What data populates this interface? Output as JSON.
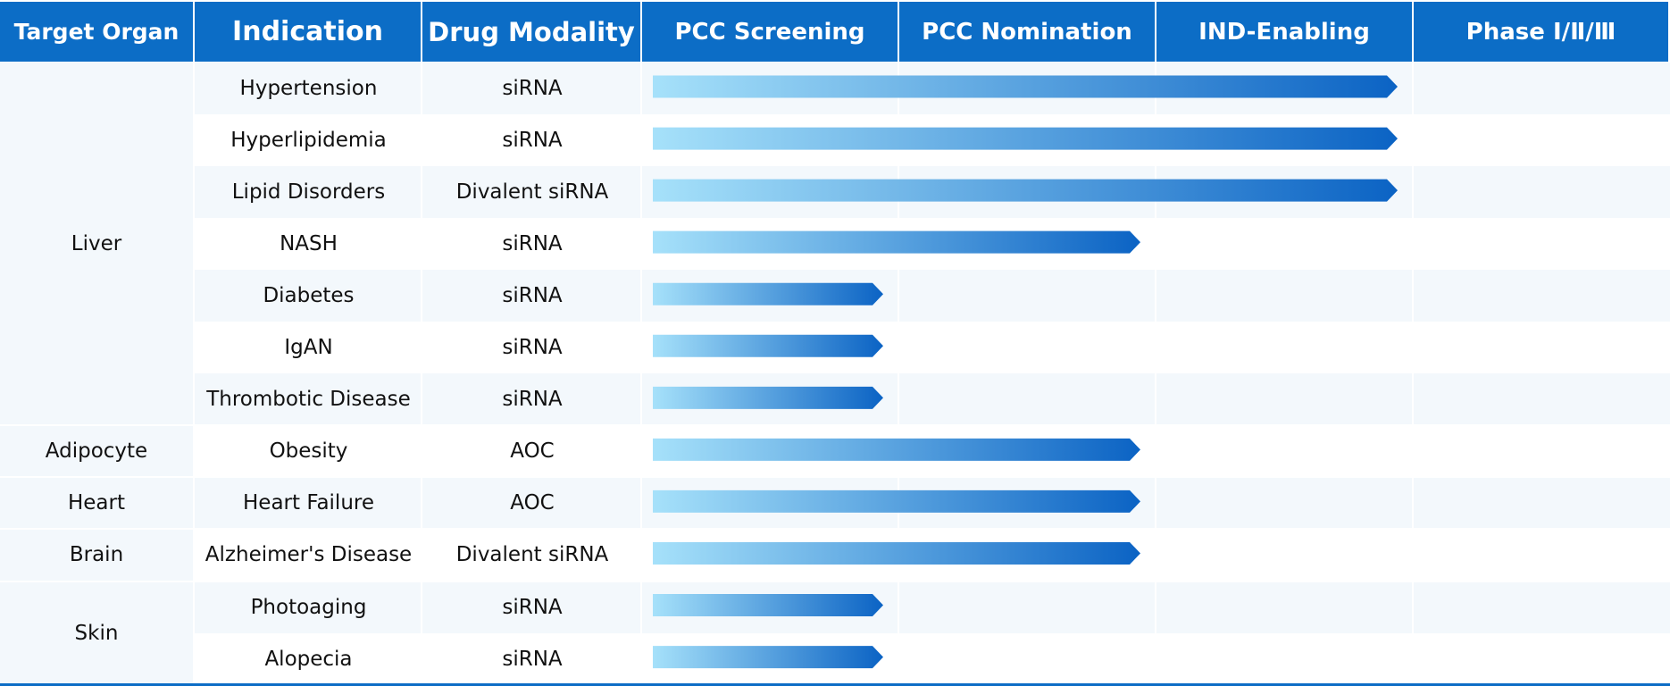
{
  "colors": {
    "header_bg": "#0c6dc6",
    "header_text": "#ffffff",
    "row_light": "#f3f8fc",
    "row_white": "#ffffff",
    "bar_start": "#a6e1fa",
    "bar_end": "#0b63c4",
    "text": "#111111"
  },
  "header": {
    "target_organ": "Target Organ",
    "indication": "Indication",
    "drug_modality": "Drug Modality",
    "stages": [
      "PCC Screening",
      "PCC Nomination",
      "IND-Enabling",
      "Phase Ⅰ/Ⅱ/Ⅲ"
    ]
  },
  "chart_data": {
    "type": "bar",
    "orientation": "horizontal",
    "stages": [
      "PCC Screening",
      "PCC Nomination",
      "IND-Enabling",
      "Phase Ⅰ/Ⅱ/Ⅲ"
    ],
    "organ_groups": [
      {
        "organ": "Liver",
        "rows": 7
      },
      {
        "organ": "Adipocyte",
        "rows": 1
      },
      {
        "organ": "Heart",
        "rows": 1
      },
      {
        "organ": "Brain",
        "rows": 1
      },
      {
        "organ": "Skin",
        "rows": 2
      }
    ],
    "rows": [
      {
        "organ": "Liver",
        "indication": "Hypertension",
        "modality": "siRNA",
        "stages_completed": 3
      },
      {
        "organ": "Liver",
        "indication": "Hyperlipidemia",
        "modality": "siRNA",
        "stages_completed": 3
      },
      {
        "organ": "Liver",
        "indication": "Lipid Disorders",
        "modality": "Divalent siRNA",
        "stages_completed": 3
      },
      {
        "organ": "Liver",
        "indication": "NASH",
        "modality": "siRNA",
        "stages_completed": 2
      },
      {
        "organ": "Liver",
        "indication": "Diabetes",
        "modality": "siRNA",
        "stages_completed": 1
      },
      {
        "organ": "Liver",
        "indication": "IgAN",
        "modality": "siRNA",
        "stages_completed": 1
      },
      {
        "organ": "Liver",
        "indication": "Thrombotic Disease",
        "modality": "siRNA",
        "stages_completed": 1
      },
      {
        "organ": "Adipocyte",
        "indication": "Obesity",
        "modality": "AOC",
        "stages_completed": 2
      },
      {
        "organ": "Heart",
        "indication": "Heart Failure",
        "modality": "AOC",
        "stages_completed": 2
      },
      {
        "organ": "Brain",
        "indication": "Alzheimer's Disease",
        "modality": "Divalent siRNA",
        "stages_completed": 2
      },
      {
        "organ": "Skin",
        "indication": "Photoaging",
        "modality": "siRNA",
        "stages_completed": 1
      },
      {
        "organ": "Skin",
        "indication": "Alopecia",
        "modality": "siRNA",
        "stages_completed": 1
      }
    ]
  }
}
